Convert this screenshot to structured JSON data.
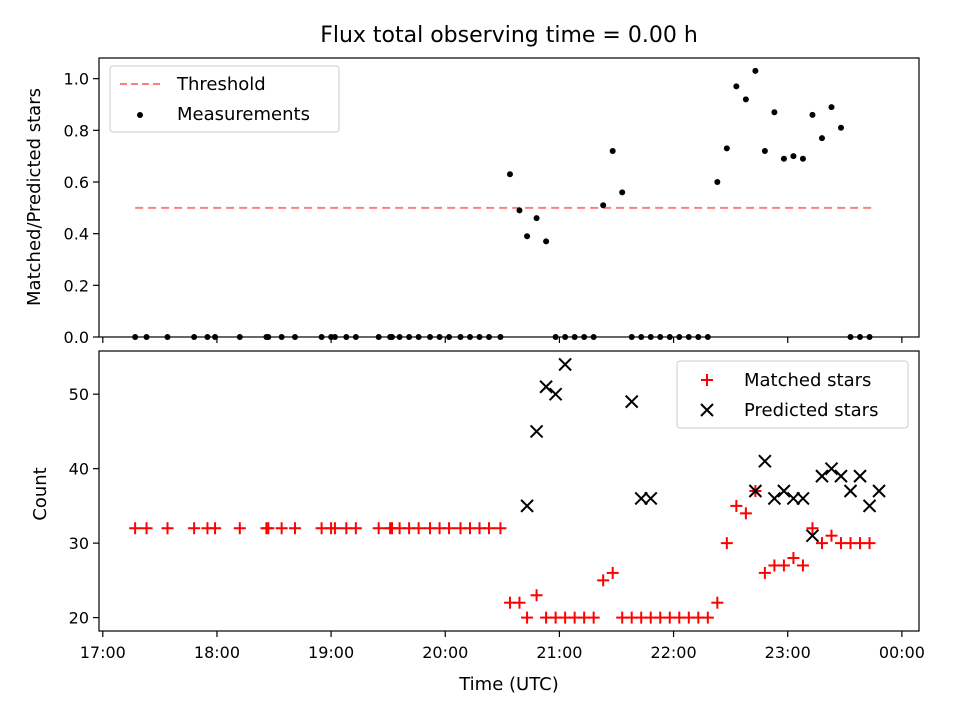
{
  "chart_data": [
    {
      "type": "scatter",
      "title": "Flux total observing time = 0.00 h",
      "ylabel": "Matched/Predicted stars",
      "xlabel": "",
      "ylim": [
        0,
        1.08
      ],
      "yticks": [
        0.0,
        0.2,
        0.4,
        0.6,
        0.8,
        1.0
      ],
      "ytick_labels": [
        "0.0",
        "0.2",
        "0.4",
        "0.6",
        "0.8",
        "1.0"
      ],
      "grid": false,
      "legend_position": "top-left",
      "threshold": {
        "name": "Threshold",
        "value": 0.5,
        "x_start": "17:17",
        "x_end": "23:46",
        "color": "#ff7f7f"
      },
      "series": [
        {
          "name": "Measurements",
          "color": "#000000",
          "x": [
            "17:17",
            "17:23",
            "17:34",
            "17:48",
            "17:55",
            "17:59",
            "18:12",
            "18:26",
            "18:27",
            "18:34",
            "18:41",
            "18:55",
            "19:00",
            "19:02",
            "19:08",
            "19:13",
            "19:25",
            "19:31",
            "19:32",
            "19:36",
            "19:41",
            "19:46",
            "19:52",
            "19:57",
            "20:02",
            "20:08",
            "20:13",
            "20:18",
            "20:23",
            "20:29",
            "20:34",
            "20:39",
            "20:43",
            "20:48",
            "20:53",
            "20:58",
            "21:03",
            "21:08",
            "21:13",
            "21:18",
            "21:23",
            "21:28",
            "21:33",
            "21:38",
            "21:43",
            "21:48",
            "21:53",
            "21:58",
            "22:03",
            "22:08",
            "22:13",
            "22:18",
            "22:23",
            "22:28",
            "22:33",
            "22:38",
            "22:43",
            "22:48",
            "22:53",
            "22:58",
            "23:03",
            "23:08",
            "23:13",
            "23:18",
            "23:23",
            "23:28",
            "23:33",
            "23:38",
            "23:43"
          ],
          "y": [
            0,
            0,
            0,
            0,
            0,
            0,
            0,
            0,
            0,
            0,
            0,
            0,
            0,
            0,
            0,
            0,
            0,
            0,
            0,
            0,
            0,
            0,
            0,
            0,
            0,
            0,
            0,
            0,
            0,
            0,
            0.63,
            0.49,
            0.39,
            0.46,
            0.37,
            0,
            0,
            0,
            0,
            0,
            0.51,
            0.72,
            0.56,
            0,
            0,
            0,
            0,
            0,
            0,
            0,
            0,
            0,
            0.6,
            0.73,
            0.97,
            0.92,
            1.03,
            0.72,
            0.87,
            0.69,
            0.7,
            0.69,
            0.86,
            0.77,
            0.89,
            0.81,
            0,
            0,
            0
          ]
        }
      ]
    },
    {
      "type": "scatter",
      "title": "",
      "ylabel": "Count",
      "xlabel": "Time (UTC)",
      "ylim": [
        18.2,
        55.8
      ],
      "yticks": [
        20,
        30,
        40,
        50
      ],
      "ytick_labels": [
        "20",
        "30",
        "40",
        "50"
      ],
      "xlim": [
        "16:58",
        "00:09"
      ],
      "xticks": [
        "17:00",
        "18:00",
        "19:00",
        "20:00",
        "21:00",
        "22:00",
        "23:00",
        "00:00"
      ],
      "xtick_labels": [
        "17:00",
        "18:00",
        "19:00",
        "20:00",
        "21:00",
        "22:00",
        "23:00",
        "00:00"
      ],
      "grid": false,
      "legend_position": "top-right",
      "series": [
        {
          "name": "Matched stars",
          "color": "#ff0000",
          "marker": "+",
          "x": [
            "17:17",
            "17:23",
            "17:34",
            "17:48",
            "17:55",
            "17:59",
            "18:12",
            "18:26",
            "18:27",
            "18:34",
            "18:41",
            "18:55",
            "19:00",
            "19:02",
            "19:08",
            "19:13",
            "19:25",
            "19:31",
            "19:32",
            "19:36",
            "19:41",
            "19:46",
            "19:52",
            "19:57",
            "20:02",
            "20:08",
            "20:13",
            "20:18",
            "20:23",
            "20:29",
            "20:34",
            "20:39",
            "20:43",
            "20:48",
            "20:53",
            "20:58",
            "21:03",
            "21:08",
            "21:13",
            "21:18",
            "21:23",
            "21:28",
            "21:33",
            "21:38",
            "21:43",
            "21:48",
            "21:53",
            "21:58",
            "22:03",
            "22:08",
            "22:13",
            "22:18",
            "22:23",
            "22:28",
            "22:33",
            "22:38",
            "22:43",
            "22:48",
            "22:53",
            "22:58",
            "23:03",
            "23:08",
            "23:13",
            "23:18",
            "23:23",
            "23:28",
            "23:33",
            "23:38",
            "23:43"
          ],
          "y": [
            32,
            32,
            32,
            32,
            32,
            32,
            32,
            32,
            32,
            32,
            32,
            32,
            32,
            32,
            32,
            32,
            32,
            32,
            32,
            32,
            32,
            32,
            32,
            32,
            32,
            32,
            32,
            32,
            32,
            32,
            22,
            22,
            20,
            23,
            20,
            20,
            20,
            20,
            20,
            20,
            25,
            26,
            20,
            20,
            20,
            20,
            20,
            20,
            20,
            20,
            20,
            20,
            22,
            30,
            35,
            34,
            37,
            26,
            27,
            27,
            28,
            27,
            32,
            30,
            31,
            30,
            30,
            30,
            30
          ]
        },
        {
          "name": "Predicted stars",
          "color": "#000000",
          "marker": "x",
          "x": [
            "20:43",
            "20:48",
            "20:53",
            "20:58",
            "21:03",
            "21:38",
            "21:43",
            "21:48",
            "22:43",
            "22:48",
            "22:53",
            "22:58",
            "23:03",
            "23:08",
            "23:13",
            "23:18",
            "23:23",
            "23:28",
            "23:33",
            "23:38",
            "23:43",
            "23:48"
          ],
          "y": [
            35,
            45,
            51,
            50,
            54,
            49,
            36,
            36,
            37,
            41,
            36,
            37,
            36,
            36,
            31,
            39,
            40,
            39,
            37,
            39,
            35,
            37
          ]
        }
      ]
    }
  ]
}
